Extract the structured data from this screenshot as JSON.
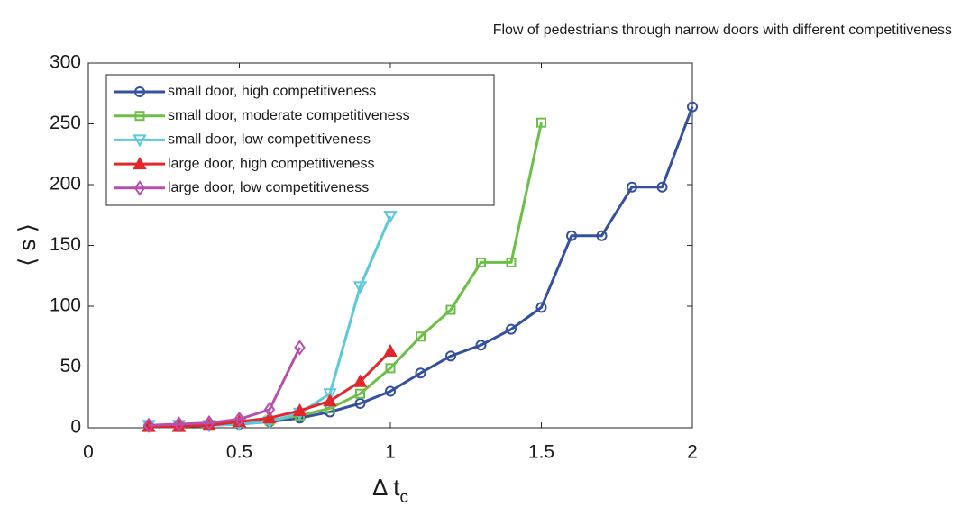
{
  "chart_data": {
    "type": "line",
    "title": "Flow of pedestrians through narrow doors with different competitiveness",
    "xlabel": "Δ t",
    "xlabel_subscript": "c",
    "ylabel": "⟨ s ⟩",
    "xlim": [
      0,
      2
    ],
    "xticks": [
      0,
      0.5,
      1,
      1.5,
      2
    ],
    "ylim": [
      0,
      300
    ],
    "yticks": [
      0,
      50,
      100,
      150,
      200,
      250,
      300
    ],
    "legend": "upper left",
    "series": [
      {
        "name": "small door, high competitiveness",
        "color": "#34509f",
        "marker": "circle",
        "x": [
          0.2,
          0.3,
          0.4,
          0.5,
          0.6,
          0.7,
          0.8,
          0.9,
          1.0,
          1.1,
          1.2,
          1.3,
          1.4,
          1.5,
          1.6,
          1.7,
          1.8,
          1.9,
          2.0
        ],
        "values": [
          1,
          1,
          2,
          3,
          5,
          8,
          13,
          20,
          30,
          45,
          59,
          68,
          81,
          99,
          158,
          158,
          198,
          198,
          264
        ]
      },
      {
        "name": "small door, moderate competitiveness",
        "color": "#6cbf46",
        "marker": "square",
        "x": [
          0.2,
          0.3,
          0.4,
          0.5,
          0.6,
          0.7,
          0.8,
          0.9,
          1.0,
          1.1,
          1.2,
          1.3,
          1.4,
          1.5
        ],
        "values": [
          1,
          1,
          2,
          4,
          6,
          10,
          16,
          28,
          49,
          75,
          97,
          136,
          136,
          251
        ]
      },
      {
        "name": "small door, low competitiveness",
        "color": "#5cc8dc",
        "marker": "triangle-down",
        "x": [
          0.2,
          0.3,
          0.4,
          0.5,
          0.6,
          0.7,
          0.8,
          0.9,
          1.0
        ],
        "values": [
          2,
          2,
          2,
          3,
          5,
          12,
          28,
          116,
          174
        ]
      },
      {
        "name": "large door, high competitiveness",
        "color": "#e3262b",
        "marker": "triangle-up",
        "x": [
          0.2,
          0.3,
          0.4,
          0.5,
          0.6,
          0.7,
          0.8,
          0.9,
          1.0
        ],
        "values": [
          1,
          1,
          2,
          5,
          8,
          14,
          22,
          38,
          63
        ]
      },
      {
        "name": "large door, low competitiveness",
        "color": "#b84fab",
        "marker": "diamond",
        "x": [
          0.2,
          0.3,
          0.4,
          0.5,
          0.6,
          0.7
        ],
        "values": [
          2,
          3,
          4,
          7,
          15,
          66
        ]
      }
    ]
  }
}
